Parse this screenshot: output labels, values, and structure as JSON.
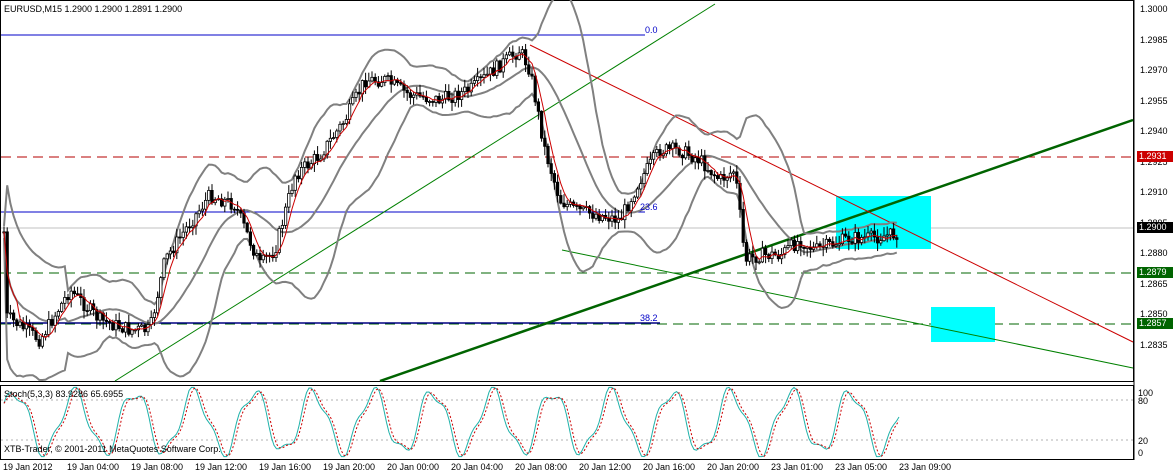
{
  "header": {
    "symbol_info": "EURUSD,M15  1.2900 1.2900 1.2891 1.2900"
  },
  "stoch": {
    "label": "Stoch(5,3,3) 83.9286 65.6955",
    "levels": [
      "100",
      "80",
      "20",
      "0"
    ]
  },
  "copyright": "XTB-Trader, © 2001-2011 MetaQuotes Software Corp.",
  "fib": {
    "level_0": "0.0",
    "level_236": "23.6",
    "level_382": "38.2"
  },
  "price_scale": [
    "1.3000",
    "1.2985",
    "1.2970",
    "1.2955",
    "1.2940",
    "1.2925",
    "1.2910",
    "1.2895",
    "1.2880",
    "1.2865",
    "1.2850",
    "1.2835"
  ],
  "price_tags": {
    "current": "1.2900",
    "resistance": "1.2931",
    "support_1": "1.2879",
    "support_2": "1.2857"
  },
  "time_scale": [
    "19 Jan 2012",
    "19 Jan 04:00",
    "19 Jan 08:00",
    "19 Jan 12:00",
    "19 Jan 16:00",
    "19 Jan 20:00",
    "20 Jan 00:00",
    "20 Jan 04:00",
    "20 Jan 08:00",
    "20 Jan 12:00",
    "20 Jan 16:00",
    "20 Jan 20:00",
    "23 Jan 01:00",
    "23 Jan 05:00",
    "23 Jan 09:00"
  ],
  "colors": {
    "background": "#ffffff",
    "candles": "#000000",
    "bollinger": "#808080",
    "ma": "#cc0000",
    "trend_green": "#006400",
    "horizontal_red": "#b40000",
    "fib_blue": "#0000c8",
    "target_box": "#00ffff",
    "stoch_main": "#20b2aa",
    "stoch_signal": "#cc0000",
    "tag_current": "#000000",
    "tag_red": "#cc0000",
    "tag_green": "#006400"
  }
}
